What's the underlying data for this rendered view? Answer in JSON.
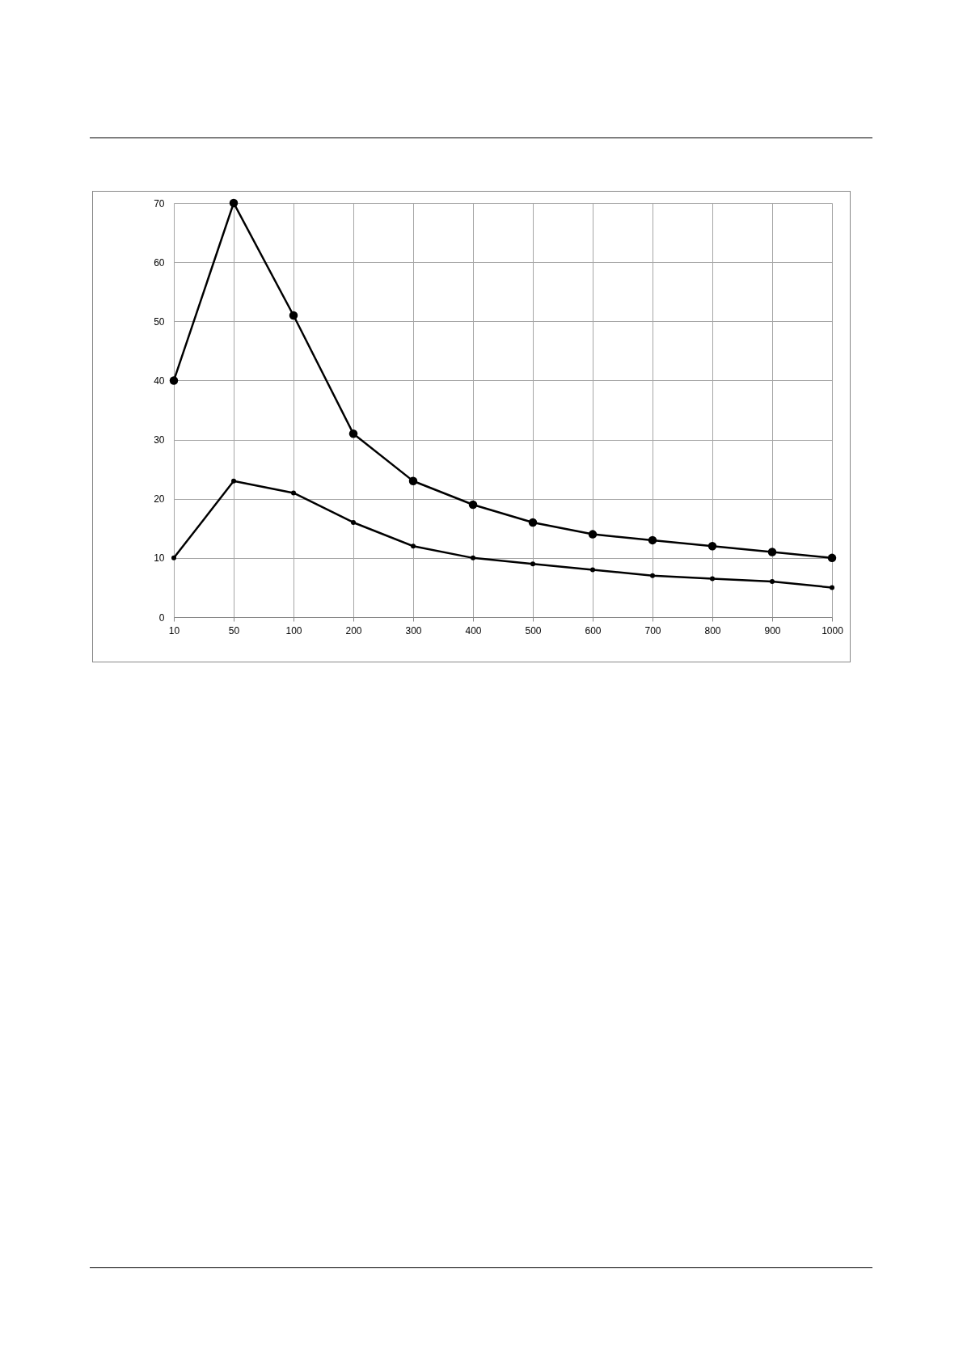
{
  "chart_data": {
    "type": "line",
    "categories": [
      "10",
      "50",
      "100",
      "200",
      "300",
      "400",
      "500",
      "600",
      "700",
      "800",
      "900",
      "1000"
    ],
    "series": [
      {
        "color": "#000000",
        "values": [
          40,
          70,
          51,
          31,
          23,
          19,
          16,
          14,
          13,
          12,
          11,
          10
        ]
      },
      {
        "color": "#000000",
        "values": [
          10,
          23,
          21,
          16,
          12,
          10,
          9,
          8,
          7,
          6.5,
          6,
          5
        ]
      }
    ],
    "ylim": [
      0,
      70
    ],
    "yticks": [
      0,
      10,
      20,
      30,
      40,
      50,
      60,
      70
    ],
    "grid": true,
    "marker": "circle",
    "line_style": "solid"
  }
}
